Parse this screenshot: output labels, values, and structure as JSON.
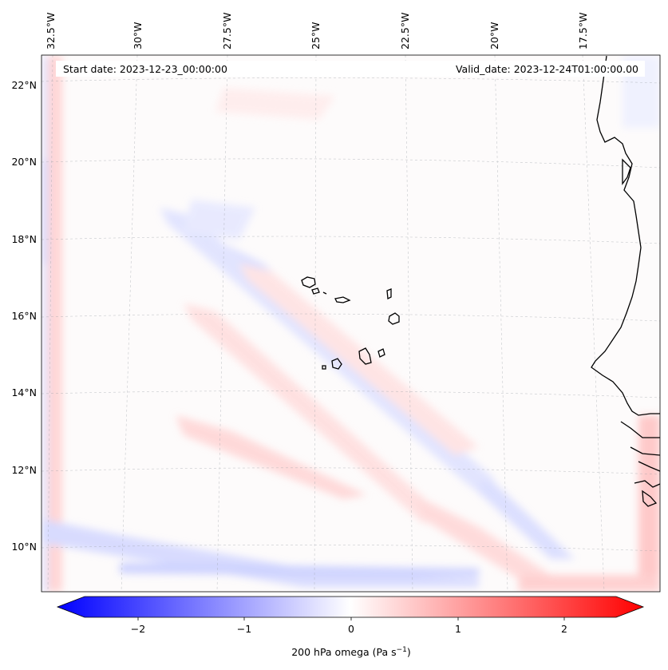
{
  "header": {
    "start_date": "Start date: 2023-12-23_00:00:00",
    "valid_date": "Valid_date: 2023-12-24T01:00:00.00"
  },
  "lon_labels": [
    "32.5°W",
    "30°W",
    "27.5°W",
    "25°W",
    "22.5°W",
    "20°W",
    "17.5°W"
  ],
  "lat_labels": [
    "22°N",
    "20°N",
    "18°N",
    "16°N",
    "14°N",
    "12°N",
    "10°N"
  ],
  "colorbar": {
    "ticks": [
      "−2",
      "−1",
      "0",
      "1",
      "2"
    ],
    "label": "200 hPa omega (Pa s",
    "label_sup": "−1",
    "label_end": ")",
    "range": [
      -2.6,
      2.6
    ],
    "colors": {
      "negative": "#0000ff",
      "zero": "#ffffff",
      "positive": "#ff0000"
    }
  },
  "variable": "200 hPa omega"
}
